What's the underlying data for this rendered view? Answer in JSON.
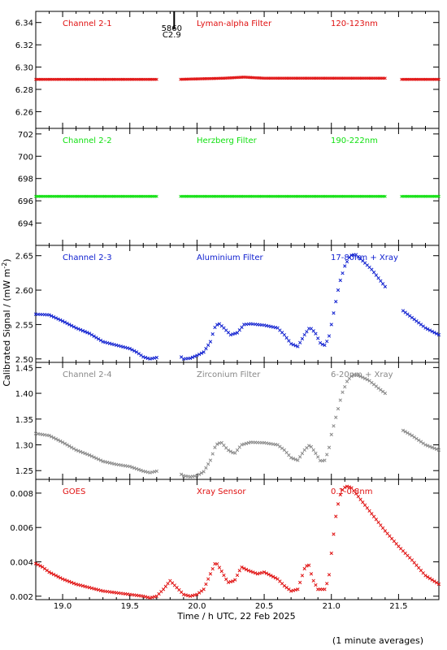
{
  "xlabel": "Time / h UTC, 22 Feb 2025",
  "ylabel": "Calibrated Signal / (mW m",
  "ylabel_sup": "-2",
  "ylabel_end": ")",
  "footnote": "(1 minute averages)",
  "flare_marker": {
    "x": 19.83,
    "label_top": "5860",
    "label_bottom": "C2.9"
  },
  "x_ticks": [
    "19.0",
    "19.5",
    "20.0",
    "20.5",
    "21.0",
    "21.5"
  ],
  "chart_data": [
    {
      "type": "scatter",
      "name": "Channel 2-1",
      "labels": [
        "Channel 2-1",
        "Lyman-alpha Filter",
        "120-123nm"
      ],
      "color": "#e01010",
      "xlim": [
        18.8,
        21.8
      ],
      "ylim": [
        6.245,
        6.35
      ],
      "yticks": [
        "6.26",
        "6.28",
        "6.30",
        "6.32",
        "6.34"
      ],
      "gaps": [
        [
          19.7,
          19.87
        ],
        [
          21.4,
          21.52
        ]
      ],
      "points": [
        [
          18.8,
          6.289
        ],
        [
          19.2,
          6.289
        ],
        [
          19.7,
          6.289
        ],
        [
          19.87,
          6.289
        ],
        [
          20.2,
          6.29
        ],
        [
          20.35,
          6.291
        ],
        [
          20.5,
          6.29
        ],
        [
          21.0,
          6.29
        ],
        [
          21.4,
          6.29
        ],
        [
          21.52,
          6.289
        ],
        [
          21.8,
          6.289
        ]
      ]
    },
    {
      "type": "scatter",
      "name": "Channel 2-2",
      "labels": [
        "Channel 2-2",
        "Herzberg Filter",
        "190-222nm"
      ],
      "color": "#10e010",
      "xlim": [
        18.8,
        21.8
      ],
      "ylim": [
        692,
        702.5
      ],
      "yticks": [
        "694",
        "696",
        "698",
        "700",
        "702"
      ],
      "gaps": [
        [
          19.7,
          19.87
        ],
        [
          21.4,
          21.52
        ]
      ],
      "points": [
        [
          18.8,
          696.4
        ],
        [
          19.7,
          696.4
        ],
        [
          19.87,
          696.4
        ],
        [
          21.4,
          696.4
        ],
        [
          21.52,
          696.4
        ],
        [
          21.8,
          696.4
        ]
      ]
    },
    {
      "type": "scatter",
      "name": "Channel 2-3",
      "labels": [
        "Channel 2-3",
        "Aluminium Filter",
        "17-80nm + Xray"
      ],
      "color": "#1020d0",
      "xlim": [
        18.8,
        21.8
      ],
      "ylim": [
        2.495,
        2.665
      ],
      "yticks": [
        "2.50",
        "2.55",
        "2.60",
        "2.65"
      ],
      "gaps": [
        [
          19.7,
          19.87
        ],
        [
          21.4,
          21.52
        ]
      ],
      "points": [
        [
          18.8,
          2.565
        ],
        [
          18.9,
          2.564
        ],
        [
          19.0,
          2.555
        ],
        [
          19.1,
          2.545
        ],
        [
          19.2,
          2.537
        ],
        [
          19.3,
          2.525
        ],
        [
          19.4,
          2.52
        ],
        [
          19.5,
          2.515
        ],
        [
          19.55,
          2.51
        ],
        [
          19.6,
          2.503
        ],
        [
          19.65,
          2.5
        ],
        [
          19.7,
          2.502
        ],
        [
          19.87,
          2.505
        ],
        [
          19.9,
          2.5
        ],
        [
          19.95,
          2.501
        ],
        [
          20.0,
          2.505
        ],
        [
          20.05,
          2.51
        ],
        [
          20.1,
          2.525
        ],
        [
          20.13,
          2.545
        ],
        [
          20.16,
          2.552
        ],
        [
          20.2,
          2.545
        ],
        [
          20.25,
          2.535
        ],
        [
          20.3,
          2.538
        ],
        [
          20.35,
          2.55
        ],
        [
          20.4,
          2.551
        ],
        [
          20.5,
          2.549
        ],
        [
          20.6,
          2.545
        ],
        [
          20.65,
          2.535
        ],
        [
          20.7,
          2.522
        ],
        [
          20.75,
          2.518
        ],
        [
          20.8,
          2.535
        ],
        [
          20.84,
          2.546
        ],
        [
          20.88,
          2.538
        ],
        [
          20.92,
          2.522
        ],
        [
          20.95,
          2.52
        ],
        [
          20.98,
          2.53
        ],
        [
          21.0,
          2.55
        ],
        [
          21.03,
          2.58
        ],
        [
          21.06,
          2.61
        ],
        [
          21.1,
          2.635
        ],
        [
          21.14,
          2.65
        ],
        [
          21.18,
          2.652
        ],
        [
          21.22,
          2.645
        ],
        [
          21.3,
          2.63
        ],
        [
          21.36,
          2.615
        ],
        [
          21.4,
          2.605
        ],
        [
          21.52,
          2.572
        ],
        [
          21.6,
          2.56
        ],
        [
          21.7,
          2.545
        ],
        [
          21.8,
          2.535
        ]
      ]
    },
    {
      "type": "scatter",
      "name": "Channel 2-4",
      "labels": [
        "Channel 2-4",
        "Zirconium Filter",
        "6-20nm + Xray"
      ],
      "color": "#888888",
      "xlim": [
        18.8,
        21.8
      ],
      "ylim": [
        1.233,
        1.46
      ],
      "yticks": [
        "1.25",
        "1.30",
        "1.35",
        "1.40",
        "1.45"
      ],
      "gaps": [
        [
          19.7,
          19.87
        ],
        [
          21.4,
          21.52
        ]
      ],
      "points": [
        [
          18.8,
          1.322
        ],
        [
          18.9,
          1.318
        ],
        [
          19.0,
          1.305
        ],
        [
          19.1,
          1.29
        ],
        [
          19.2,
          1.28
        ],
        [
          19.3,
          1.268
        ],
        [
          19.4,
          1.262
        ],
        [
          19.5,
          1.258
        ],
        [
          19.6,
          1.249
        ],
        [
          19.65,
          1.246
        ],
        [
          19.7,
          1.249
        ],
        [
          19.87,
          1.245
        ],
        [
          19.9,
          1.24
        ],
        [
          19.95,
          1.238
        ],
        [
          20.0,
          1.24
        ],
        [
          20.05,
          1.248
        ],
        [
          20.1,
          1.27
        ],
        [
          20.14,
          1.3
        ],
        [
          20.18,
          1.305
        ],
        [
          20.23,
          1.29
        ],
        [
          20.28,
          1.283
        ],
        [
          20.33,
          1.3
        ],
        [
          20.4,
          1.305
        ],
        [
          20.5,
          1.304
        ],
        [
          20.6,
          1.3
        ],
        [
          20.65,
          1.29
        ],
        [
          20.7,
          1.275
        ],
        [
          20.75,
          1.27
        ],
        [
          20.8,
          1.29
        ],
        [
          20.84,
          1.3
        ],
        [
          20.88,
          1.285
        ],
        [
          20.92,
          1.268
        ],
        [
          20.95,
          1.27
        ],
        [
          20.98,
          1.29
        ],
        [
          21.0,
          1.32
        ],
        [
          21.04,
          1.36
        ],
        [
          21.08,
          1.4
        ],
        [
          21.12,
          1.425
        ],
        [
          21.16,
          1.436
        ],
        [
          21.2,
          1.435
        ],
        [
          21.28,
          1.425
        ],
        [
          21.35,
          1.41
        ],
        [
          21.4,
          1.4
        ],
        [
          21.52,
          1.33
        ],
        [
          21.6,
          1.318
        ],
        [
          21.7,
          1.3
        ],
        [
          21.8,
          1.29
        ]
      ]
    },
    {
      "type": "scatter",
      "name": "GOES",
      "labels": [
        "GOES",
        "Xray Sensor",
        "0.1-0.8nm"
      ],
      "color": "#e01010",
      "xlim": [
        18.8,
        21.8
      ],
      "ylim": [
        0.0018,
        0.0088
      ],
      "yticks": [
        "0.002",
        "0.004",
        "0.006",
        "0.008"
      ],
      "gaps": [],
      "points": [
        [
          18.8,
          0.0039
        ],
        [
          18.85,
          0.0037
        ],
        [
          18.9,
          0.0034
        ],
        [
          19.0,
          0.003
        ],
        [
          19.1,
          0.0027
        ],
        [
          19.2,
          0.0025
        ],
        [
          19.3,
          0.0023
        ],
        [
          19.4,
          0.0022
        ],
        [
          19.5,
          0.0021
        ],
        [
          19.6,
          0.002
        ],
        [
          19.65,
          0.0019
        ],
        [
          19.7,
          0.002
        ],
        [
          19.75,
          0.0024
        ],
        [
          19.8,
          0.0029
        ],
        [
          19.85,
          0.0025
        ],
        [
          19.9,
          0.0021
        ],
        [
          19.95,
          0.002
        ],
        [
          20.0,
          0.0021
        ],
        [
          20.05,
          0.0024
        ],
        [
          20.1,
          0.0033
        ],
        [
          20.14,
          0.004
        ],
        [
          20.18,
          0.0035
        ],
        [
          20.23,
          0.0028
        ],
        [
          20.28,
          0.0029
        ],
        [
          20.33,
          0.0037
        ],
        [
          20.38,
          0.0035
        ],
        [
          20.45,
          0.0033
        ],
        [
          20.5,
          0.0034
        ],
        [
          20.55,
          0.0032
        ],
        [
          20.6,
          0.003
        ],
        [
          20.65,
          0.0026
        ],
        [
          20.7,
          0.0023
        ],
        [
          20.75,
          0.0024
        ],
        [
          20.8,
          0.0036
        ],
        [
          20.83,
          0.0039
        ],
        [
          20.86,
          0.003
        ],
        [
          20.9,
          0.0024
        ],
        [
          20.95,
          0.0024
        ],
        [
          20.98,
          0.003
        ],
        [
          21.0,
          0.0045
        ],
        [
          21.03,
          0.0065
        ],
        [
          21.06,
          0.0078
        ],
        [
          21.09,
          0.0083
        ],
        [
          21.12,
          0.0084
        ],
        [
          21.15,
          0.0083
        ],
        [
          21.2,
          0.0078
        ],
        [
          21.3,
          0.0068
        ],
        [
          21.4,
          0.0058
        ],
        [
          21.5,
          0.0049
        ],
        [
          21.6,
          0.0041
        ],
        [
          21.7,
          0.0032
        ],
        [
          21.8,
          0.0027
        ]
      ]
    }
  ]
}
